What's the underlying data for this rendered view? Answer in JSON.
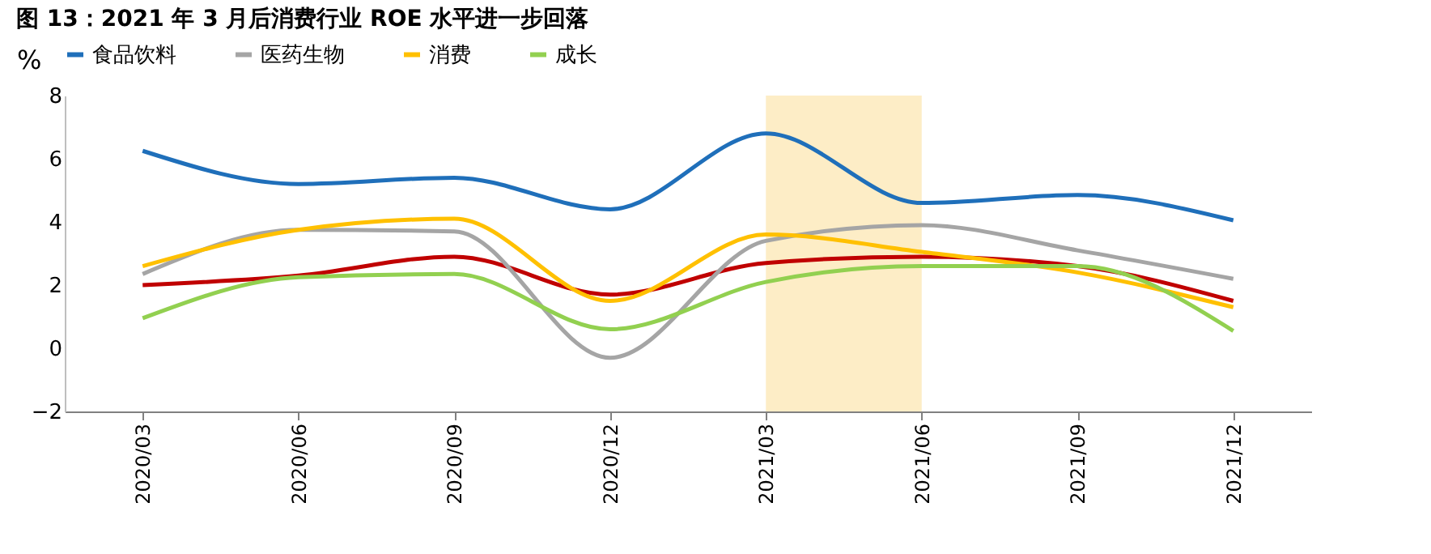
{
  "chart_data": {
    "type": "line",
    "title": "图 13：2021 年 3 月后消费行业 ROE 水平进一步回落",
    "ylabel": "%",
    "categories": [
      "2020/03",
      "2020/06",
      "2020/09",
      "2020/12",
      "2021/03",
      "2021/06",
      "2021/09",
      "2021/12"
    ],
    "series": [
      {
        "color": "#c00000",
        "values": [
          2.0,
          2.3,
          2.9,
          1.7,
          2.7,
          2.9,
          2.6,
          1.5
        ]
      },
      {
        "name": "食品饮料",
        "color": "#1f6fba",
        "values": [
          6.25,
          5.2,
          5.4,
          4.4,
          6.8,
          4.6,
          4.85,
          4.05
        ]
      },
      {
        "name": "医药生物",
        "color": "#a5a5a5",
        "values": [
          2.35,
          3.75,
          3.7,
          -0.3,
          3.4,
          3.9,
          3.1,
          2.2
        ]
      },
      {
        "name": "消费",
        "color": "#ffc000",
        "values": [
          2.6,
          3.75,
          4.1,
          1.5,
          3.6,
          3.05,
          2.4,
          1.3
        ]
      },
      {
        "name": "成长",
        "color": "#92d050",
        "values": [
          0.95,
          2.25,
          2.35,
          0.6,
          2.1,
          2.6,
          2.6,
          0.55
        ]
      }
    ],
    "ylim": [
      -2,
      8
    ],
    "yticks": [
      -2,
      0,
      2,
      4,
      6,
      8
    ],
    "grid": false,
    "legend": "top",
    "line_style": "solid",
    "marker": "none",
    "bands": [
      {
        "axis": "x",
        "from": "2021/03",
        "to": "2021/06",
        "color": "#fdedc6"
      }
    ]
  }
}
